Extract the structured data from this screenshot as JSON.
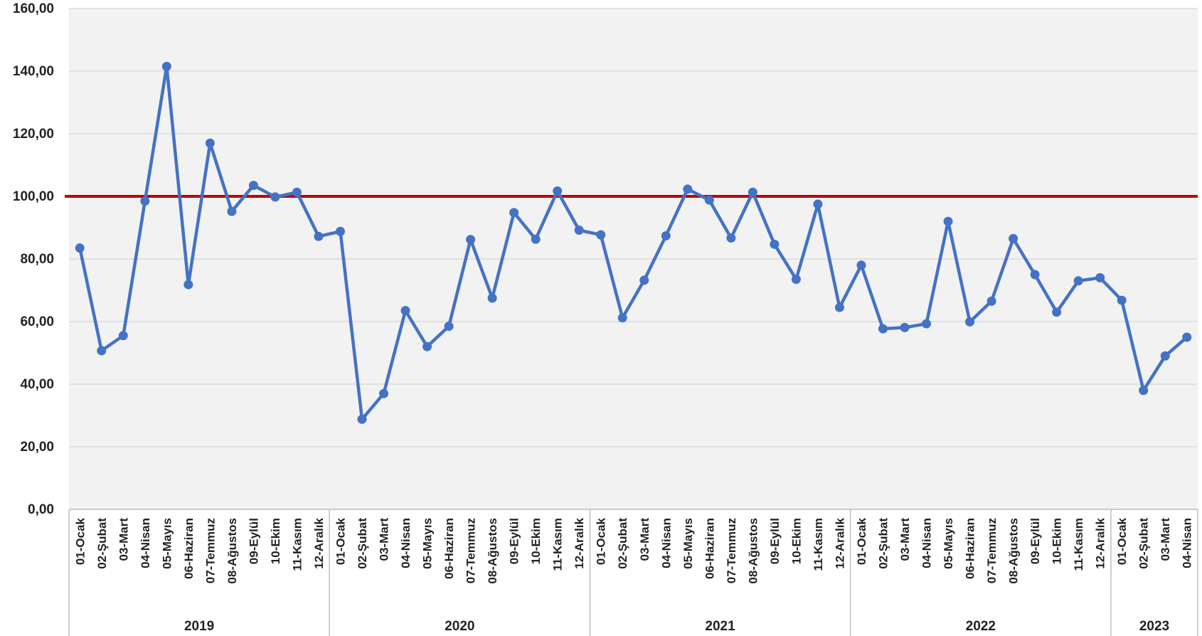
{
  "chart_data": {
    "type": "line",
    "title": "",
    "xlabel": "",
    "ylabel": "",
    "ylim": [
      0,
      160
    ],
    "yticks": [
      "0,00",
      "20,00",
      "40,00",
      "60,00",
      "80,00",
      "100,00",
      "120,00",
      "140,00",
      "160,00"
    ],
    "grid": true,
    "reference_line": {
      "value": 100,
      "color": "#c00000"
    },
    "colors": {
      "series": "#4472c4",
      "reference": "#c00000",
      "plot_bg": "#f2f2f2",
      "grid": "#d9d9d9"
    },
    "groups": [
      {
        "label": "2019",
        "count": 12
      },
      {
        "label": "2020",
        "count": 12
      },
      {
        "label": "2021",
        "count": 12
      },
      {
        "label": "2022",
        "count": 12
      },
      {
        "label": "2023",
        "count": 4
      }
    ],
    "categories": [
      "01-Ocak",
      "02-Şubat",
      "03-Mart",
      "04-Nisan",
      "05-Mayıs",
      "06-Haziran",
      "07-Temmuz",
      "08-Ağustos",
      "09-Eylül",
      "10-Ekim",
      "11-Kasım",
      "12-Aralık",
      "01-Ocak",
      "02-Şubat",
      "03-Mart",
      "04-Nisan",
      "05-Mayıs",
      "06-Haziran",
      "07-Temmuz",
      "08-Ağustos",
      "09-Eylül",
      "10-Ekim",
      "11-Kasım",
      "12-Aralık",
      "01-Ocak",
      "02-Şubat",
      "03-Mart",
      "04-Nisan",
      "05-Mayıs",
      "06-Haziran",
      "07-Temmuz",
      "08-Ağustos",
      "09-Eylül",
      "10-Ekim",
      "11-Kasım",
      "12-Aralık",
      "01-Ocak",
      "02-Şubat",
      "03-Mart",
      "04-Nisan",
      "05-Mayıs",
      "06-Haziran",
      "07-Temmuz",
      "08-Ağustos",
      "09-Eylül",
      "10-Ekim",
      "11-Kasım",
      "12-Aralık",
      "01-Ocak",
      "02-Şubat",
      "03-Mart",
      "04-Nisan"
    ],
    "series": [
      {
        "values": [
          83.5,
          50.7,
          55.5,
          98.5,
          141.5,
          71.8,
          117.0,
          95.2,
          103.5,
          99.8,
          101.3,
          87.2,
          88.8,
          28.8,
          37.0,
          63.5,
          52.0,
          58.5,
          86.2,
          67.5,
          94.8,
          86.3,
          101.7,
          89.2,
          87.7,
          61.2,
          73.2,
          87.4,
          102.3,
          98.8,
          86.7,
          101.3,
          84.7,
          73.5,
          97.5,
          64.5,
          78.0,
          57.7,
          58.1,
          59.3,
          92.0,
          59.9,
          66.5,
          86.5,
          75.0,
          63.0,
          73.0,
          74.0,
          66.8,
          38.0,
          49.0,
          55.0
        ]
      }
    ]
  }
}
